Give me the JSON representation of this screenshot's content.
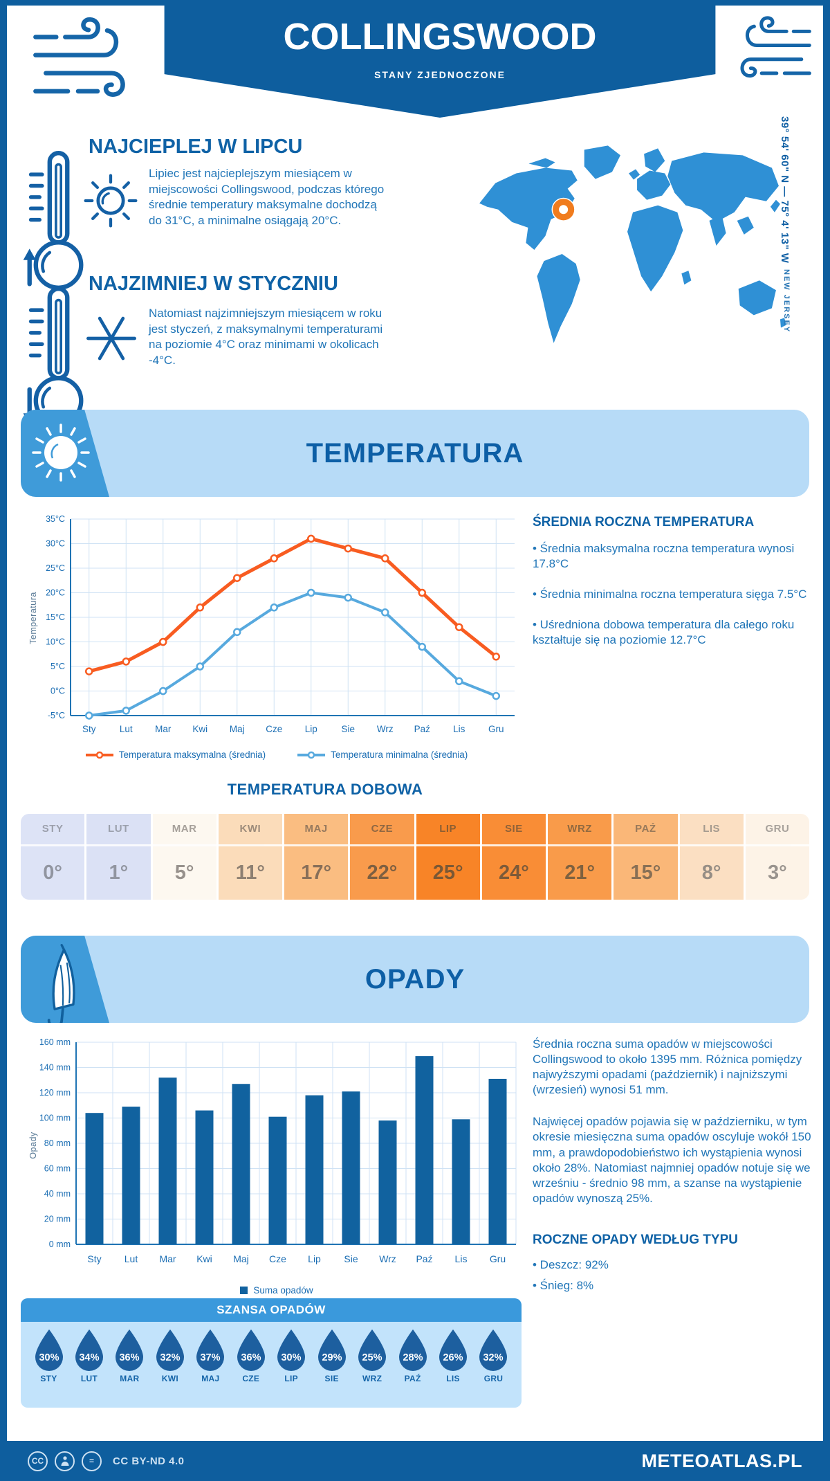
{
  "header": {
    "title": "COLLINGSWOOD",
    "subtitle": "STANY ZJEDNOCZONE"
  },
  "geo": {
    "coords": "39° 54' 60\" N — 75° 4' 13\" W",
    "region": "NEW JERSEY"
  },
  "warmest": {
    "heading": "NAJCIEPLEJ W LIPCU",
    "text": "Lipiec jest najcieplejszym miesiącem w miejscowości Collingswood, podczas którego średnie temperatury maksymalne dochodzą do 31°C, a minimalne osiągają 20°C."
  },
  "coldest": {
    "heading": "NAJZIMNIEJ W STYCZNIU",
    "text": "Natomiast najzimniejszym miesiącem w roku jest styczeń, z maksymalnymi temperaturami na poziomie 4°C oraz minimami w okolicach -4°C."
  },
  "temperature_section": {
    "title": "TEMPERATURA",
    "panel_heading": "ŚREDNIA ROCZNA TEMPERATURA",
    "bullets": [
      "• Średnia maksymalna roczna temperatura wynosi 17.8°C",
      "• Średnia minimalna roczna temperatura sięga 7.5°C",
      "• Uśredniona dobowa temperatura dla całego roku kształtuje się na poziomie 12.7°C"
    ]
  },
  "chart_data": [
    {
      "type": "line",
      "title": "Temperatura",
      "categories": [
        "Sty",
        "Lut",
        "Mar",
        "Kwi",
        "Maj",
        "Cze",
        "Lip",
        "Sie",
        "Wrz",
        "Paź",
        "Lis",
        "Gru"
      ],
      "series": [
        {
          "name": "Temperatura maksymalna (średnia)",
          "color": "#f85c21",
          "values": [
            4,
            6,
            10,
            17,
            23,
            27,
            31,
            29,
            27,
            20,
            13,
            7
          ]
        },
        {
          "name": "Temperatura minimalna (średnia)",
          "color": "#57a9de",
          "values": [
            -5,
            -4,
            0,
            5,
            12,
            17,
            20,
            19,
            16,
            9,
            2,
            -1
          ]
        }
      ],
      "ylabel": "Temperatura",
      "ylim": [
        -5,
        35
      ],
      "ytick_step": 5,
      "ytick_suffix": "°C",
      "grid": true,
      "legend_position": "bottom"
    },
    {
      "type": "bar",
      "title": "Opady",
      "categories": [
        "Sty",
        "Lut",
        "Mar",
        "Kwi",
        "Maj",
        "Cze",
        "Lip",
        "Sie",
        "Wrz",
        "Paź",
        "Lis",
        "Gru"
      ],
      "series": [
        {
          "name": "Suma opadów",
          "color": "#11629f",
          "values": [
            104,
            109,
            132,
            106,
            127,
            101,
            118,
            121,
            98,
            149,
            99,
            131
          ]
        }
      ],
      "ylabel": "Opady",
      "ylim": [
        0,
        160
      ],
      "ytick_step": 20,
      "ytick_suffix": " mm",
      "grid": true,
      "legend_position": "bottom"
    }
  ],
  "daily_temp": {
    "heading": "TEMPERATURA DOBOWA",
    "columns": [
      {
        "label": "STY",
        "value": "0°",
        "bg": "#dde3f6",
        "fg": "#9195a0"
      },
      {
        "label": "LUT",
        "value": "1°",
        "bg": "#dbe1f5",
        "fg": "#9195a0"
      },
      {
        "label": "MAR",
        "value": "5°",
        "bg": "#fdf8f0",
        "fg": "#97918c"
      },
      {
        "label": "KWI",
        "value": "11°",
        "bg": "#fbdcba",
        "fg": "#8d7f71"
      },
      {
        "label": "MAJ",
        "value": "17°",
        "bg": "#fabd81",
        "fg": "#876f59"
      },
      {
        "label": "CZE",
        "value": "22°",
        "bg": "#f99b4c",
        "fg": "#7d5f41"
      },
      {
        "label": "LIP",
        "value": "25°",
        "bg": "#f88427",
        "fg": "#7a5835"
      },
      {
        "label": "SIE",
        "value": "24°",
        "bg": "#f98d36",
        "fg": "#7c5a39"
      },
      {
        "label": "WRZ",
        "value": "21°",
        "bg": "#f99b4a",
        "fg": "#7e613f"
      },
      {
        "label": "PAŹ",
        "value": "15°",
        "bg": "#fab778",
        "fg": "#876f55"
      },
      {
        "label": "LIS",
        "value": "8°",
        "bg": "#fbdfc2",
        "fg": "#968e85"
      },
      {
        "label": "GRU",
        "value": "3°",
        "bg": "#fdf3e7",
        "fg": "#99938e"
      }
    ]
  },
  "precip_section": {
    "title": "OPADY",
    "paragraphs": [
      "Średnia roczna suma opadów w miejscowości Collingswood to około 1395 mm. Różnica pomiędzy najwyższymi opadami (październik) i najniższymi (wrzesień) wynosi 51 mm.",
      "Najwięcej opadów pojawia się w październiku, w tym okresie miesięczna suma opadów oscyluje wokół 150 mm, a prawdopodobieństwo ich wystąpienia wynosi około 28%. Natomiast najmniej opadów notuje się we wrześniu - średnio 98 mm, a szanse na wystąpienie opadów wynoszą 25%."
    ],
    "type_heading": "ROCZNE OPADY WEDŁUG TYPU",
    "type_bullets": [
      "• Deszcz: 92%",
      "• Śnieg: 8%"
    ]
  },
  "rain_chance": {
    "heading": "SZANSA OPADÓW",
    "items": [
      {
        "month": "STY",
        "value": "30%"
      },
      {
        "month": "LUT",
        "value": "34%"
      },
      {
        "month": "MAR",
        "value": "36%"
      },
      {
        "month": "KWI",
        "value": "32%"
      },
      {
        "month": "MAJ",
        "value": "37%"
      },
      {
        "month": "CZE",
        "value": "36%"
      },
      {
        "month": "LIP",
        "value": "30%"
      },
      {
        "month": "SIE",
        "value": "29%"
      },
      {
        "month": "WRZ",
        "value": "25%"
      },
      {
        "month": "PAŹ",
        "value": "28%"
      },
      {
        "month": "LIS",
        "value": "26%"
      },
      {
        "month": "GRU",
        "value": "32%"
      }
    ]
  },
  "footer": {
    "license": "CC BY-ND 4.0",
    "brand": "METEOATLAS.PL"
  },
  "colors": {
    "brand_blue": "#0e5e9e",
    "heading_blue": "#0f62a6",
    "body_blue": "#2176b8",
    "banner_light": "#b7dbf7",
    "banner_corner": "#3f9bd9",
    "grid": "#cfe2f4",
    "axis": "#1f74b4",
    "max_line": "#f85c21",
    "min_line": "#57a9de",
    "bar": "#11629f",
    "map": "#2f90d5",
    "marker": "#f07c1e",
    "chance_bg": "#c2e3fb",
    "chance_head": "#3a99dc",
    "drop": "#1d5f9f"
  }
}
